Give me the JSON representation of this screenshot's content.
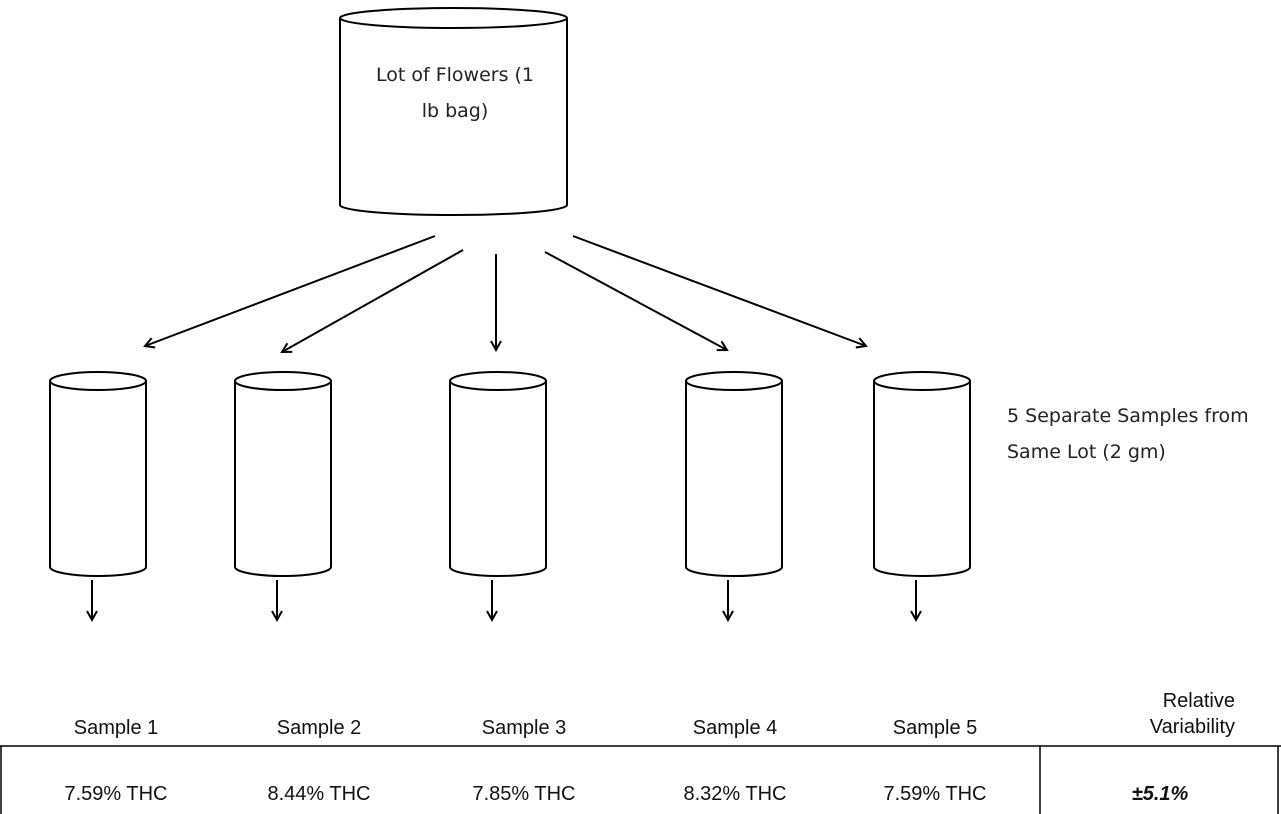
{
  "lot": {
    "label": "Lot of Flowers (1 lb bag)"
  },
  "samples_note": "5 Separate Samples from Same Lot (2 gm)",
  "table": {
    "headers": [
      "Sample 1",
      "Sample 2",
      "Sample 3",
      "Sample 4",
      "Sample 5",
      "Relative Variability"
    ],
    "rows": [
      [
        "7.59% THC",
        "8.44% THC",
        "7.85% THC",
        "8.32% THC",
        "7.59% THC",
        "±5.1%"
      ]
    ]
  }
}
